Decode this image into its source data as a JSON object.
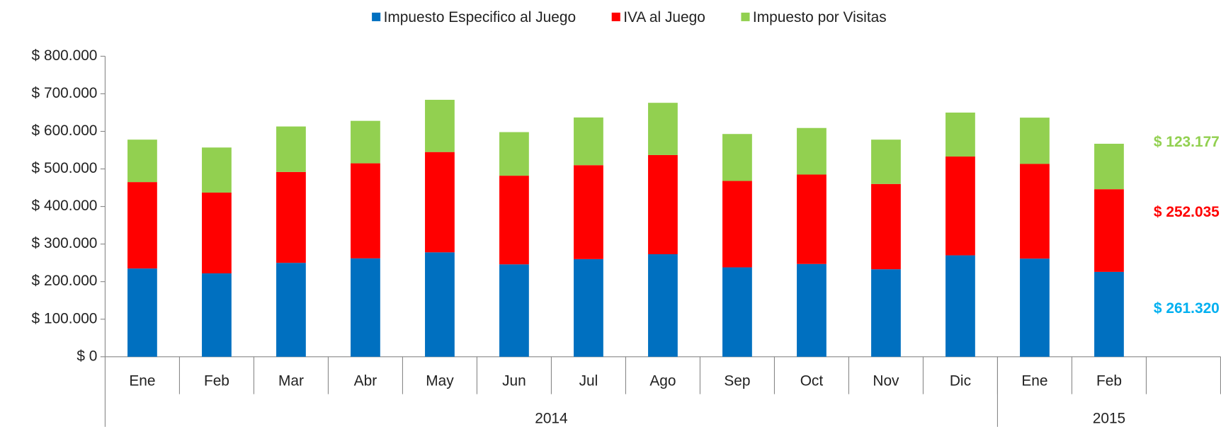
{
  "chart_data": {
    "type": "stacked_bar",
    "categories": [
      "Ene",
      "Feb",
      "Mar",
      "Abr",
      "May",
      "Jun",
      "Jul",
      "Ago",
      "Sep",
      "Oct",
      "Nov",
      "Dic",
      "Ene",
      "Feb",
      null
    ],
    "groups": [
      {
        "label": "2014",
        "span": 12
      },
      {
        "label": "2015",
        "span": 3
      }
    ],
    "series": [
      {
        "name": "Impuesto Especifico al Juego",
        "color": "#0070c0",
        "values": [
          235000,
          222000,
          250000,
          262000,
          278000,
          246000,
          260000,
          273000,
          238000,
          247000,
          233000,
          270000,
          261320,
          226000,
          null
        ]
      },
      {
        "name": "IVA al Juego",
        "color": "#ff0000",
        "values": [
          230000,
          215000,
          242000,
          253000,
          267000,
          236000,
          250000,
          264000,
          230000,
          238000,
          227000,
          263000,
          252035,
          220000,
          null
        ]
      },
      {
        "name": "Impuesto por Visitas",
        "color": "#92d050",
        "values": [
          113000,
          120000,
          121000,
          113000,
          139000,
          116000,
          127000,
          139000,
          125000,
          124000,
          118000,
          117000,
          123177,
          121000,
          null
        ]
      }
    ],
    "annotations": [
      {
        "text": "$ 123.177",
        "color": "#92d050"
      },
      {
        "text": "$ 252.035",
        "color": "#ff0000"
      },
      {
        "text": "$ 261.320",
        "color": "#00b0f0"
      }
    ],
    "ylim": [
      0,
      800000
    ],
    "yticks": [
      {
        "value": 0,
        "label": "$ 0"
      },
      {
        "value": 100000,
        "label": "$ 100.000"
      },
      {
        "value": 200000,
        "label": "$ 200.000"
      },
      {
        "value": 300000,
        "label": "$ 300.000"
      },
      {
        "value": 400000,
        "label": "$ 400.000"
      },
      {
        "value": 500000,
        "label": "$ 500.000"
      },
      {
        "value": 600000,
        "label": "$ 600.000"
      },
      {
        "value": 700000,
        "label": "$ 700.000"
      },
      {
        "value": 800000,
        "label": "$ 800.000"
      }
    ],
    "legend": "top"
  }
}
